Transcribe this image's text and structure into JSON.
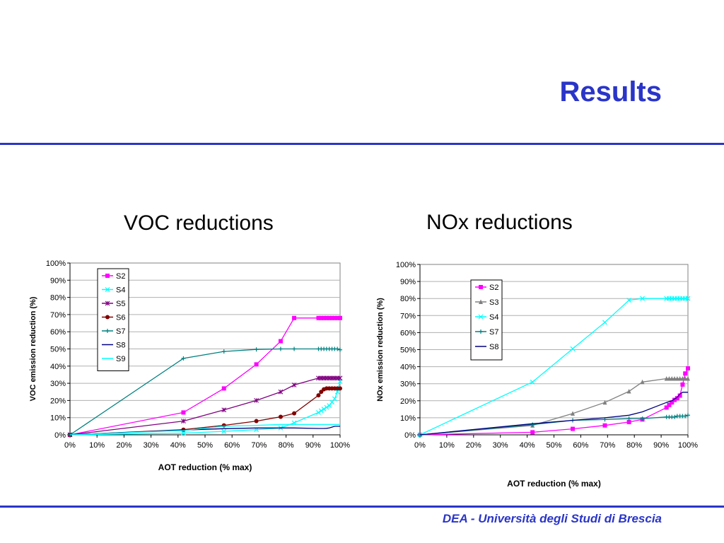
{
  "slide": {
    "title": "Results",
    "footer": "DEA - Università degli Studi di Brescia",
    "accent_color": "#2a35c8"
  },
  "panels": {
    "voc_heading": "VOC reductions",
    "nox_heading": "NOx reductions"
  },
  "chart_data": [
    {
      "type": "line",
      "xlabel": "AOT reduction (% max)",
      "ylabel": "VOC emission reduction (%)",
      "xlim": [
        0,
        100
      ],
      "ylim": [
        0,
        100
      ],
      "xticks": [
        "0%",
        "10%",
        "20%",
        "30%",
        "40%",
        "50%",
        "60%",
        "70%",
        "80%",
        "90%",
        "100%"
      ],
      "yticks": [
        "0%",
        "10%",
        "20%",
        "30%",
        "40%",
        "50%",
        "60%",
        "70%",
        "80%",
        "90%",
        "100%"
      ],
      "grid": "horizontal",
      "legend": "top-left",
      "series": [
        {
          "name": "S2",
          "color": "#ff00ff",
          "marker": "square",
          "x": [
            0,
            42,
            57,
            69,
            78,
            83,
            92,
            93,
            94,
            95,
            96,
            97,
            98,
            99,
            100
          ],
          "y": [
            0,
            13,
            27,
            41,
            54.5,
            68,
            68,
            68,
            68,
            68,
            68,
            68,
            68,
            68,
            68
          ]
        },
        {
          "name": "S4",
          "color": "#00ffff",
          "marker": "x",
          "x": [
            0,
            42,
            57,
            69,
            78,
            83,
            92,
            93,
            94,
            95,
            96,
            97,
            98,
            99,
            100
          ],
          "y": [
            0,
            1,
            2,
            3,
            4,
            7,
            13,
            14,
            15,
            16,
            17,
            19,
            21,
            25,
            31
          ]
        },
        {
          "name": "S5",
          "color": "#800080",
          "marker": "asterisk",
          "x": [
            0,
            42,
            57,
            69,
            78,
            83,
            92,
            93,
            94,
            95,
            96,
            97,
            98,
            99,
            100
          ],
          "y": [
            0,
            8,
            14.5,
            20,
            25,
            29,
            33,
            33,
            33,
            33,
            33,
            33,
            33,
            33,
            33
          ]
        },
        {
          "name": "S6",
          "color": "#800000",
          "marker": "circle",
          "x": [
            0,
            42,
            57,
            69,
            78,
            83,
            92,
            93,
            94,
            95,
            96,
            97,
            98,
            99,
            100
          ],
          "y": [
            0,
            3,
            5.5,
            8,
            10.5,
            12.5,
            23,
            25,
            26.5,
            27,
            27,
            27,
            27,
            27,
            27
          ]
        },
        {
          "name": "S7",
          "color": "#008080",
          "marker": "plus",
          "x": [
            0,
            42,
            57,
            69,
            78,
            83,
            92,
            93,
            94,
            95,
            96,
            97,
            98,
            99,
            100
          ],
          "y": [
            0,
            44.5,
            48.5,
            49.7,
            50,
            50,
            50,
            50,
            50,
            50,
            50,
            50,
            50,
            50,
            49.5
          ]
        },
        {
          "name": "S8",
          "color": "#000080",
          "marker": "none",
          "x": [
            0,
            42,
            57,
            69,
            78,
            83,
            92,
            93,
            94,
            95,
            96,
            97,
            98,
            99,
            100
          ],
          "y": [
            0,
            2.8,
            3.6,
            4,
            4,
            4,
            3.7,
            3.7,
            3.7,
            3.8,
            4,
            4.5,
            5,
            5,
            5
          ]
        },
        {
          "name": "S9",
          "color": "#00ffff",
          "marker": "none",
          "x": [
            0,
            42,
            57,
            69,
            78,
            83,
            92,
            93,
            94,
            95,
            96,
            97,
            98,
            99,
            100
          ],
          "y": [
            0,
            2.5,
            5,
            5.5,
            6,
            6,
            6,
            6,
            6,
            6,
            6,
            6,
            6,
            6,
            6
          ]
        }
      ]
    },
    {
      "type": "line",
      "xlabel": "AOT reduction (% max)",
      "ylabel": "NOx emission reduction (%)",
      "xlim": [
        0,
        100
      ],
      "ylim": [
        0,
        100
      ],
      "xticks": [
        "0%",
        "10%",
        "20%",
        "30%",
        "40%",
        "50%",
        "60%",
        "70%",
        "80%",
        "90%",
        "100%"
      ],
      "yticks": [
        "0%",
        "10%",
        "20%",
        "30%",
        "40%",
        "50%",
        "60%",
        "70%",
        "80%",
        "90%",
        "100%"
      ],
      "grid": "horizontal",
      "legend": "top-center",
      "series": [
        {
          "name": "S2",
          "color": "#ff00ff",
          "marker": "square",
          "x": [
            0,
            42,
            57,
            69,
            78,
            83,
            92,
            93,
            94,
            95,
            96,
            97,
            98,
            99,
            100
          ],
          "y": [
            0,
            1.5,
            3.5,
            5.5,
            7.5,
            9,
            16,
            17.5,
            19,
            20.5,
            21.5,
            23,
            29.5,
            36,
            39
          ]
        },
        {
          "name": "S3",
          "color": "#808080",
          "marker": "triangle",
          "x": [
            0,
            42,
            57,
            69,
            78,
            83,
            92,
            93,
            94,
            95,
            96,
            97,
            98,
            99,
            100
          ],
          "y": [
            0,
            5.5,
            12.5,
            19,
            25.5,
            31,
            33,
            33,
            33,
            33,
            33,
            33,
            33,
            33,
            33
          ]
        },
        {
          "name": "S4",
          "color": "#00ffff",
          "marker": "x",
          "x": [
            0,
            42,
            57,
            69,
            78,
            83,
            92,
            93,
            94,
            95,
            96,
            97,
            98,
            99,
            100
          ],
          "y": [
            0,
            31,
            50.5,
            66,
            79,
            80,
            80,
            80,
            80,
            80,
            80,
            80,
            80,
            80,
            80
          ]
        },
        {
          "name": "S7",
          "color": "#008080",
          "marker": "plus",
          "x": [
            0,
            42,
            57,
            69,
            78,
            83,
            92,
            93,
            94,
            95,
            96,
            97,
            98,
            99,
            100
          ],
          "y": [
            0,
            6,
            8.5,
            9,
            9.5,
            9.5,
            10.5,
            10.5,
            10.5,
            10.5,
            11,
            11,
            11,
            11,
            11.5
          ]
        },
        {
          "name": "S8",
          "color": "#000080",
          "marker": "none",
          "x": [
            0,
            42,
            57,
            69,
            78,
            83,
            92,
            93,
            94,
            95,
            96,
            97,
            98,
            99,
            100
          ],
          "y": [
            0,
            6.5,
            8.5,
            10,
            11.5,
            13.5,
            19,
            19.5,
            20,
            21,
            22,
            24,
            25,
            25,
            25
          ]
        }
      ]
    }
  ]
}
